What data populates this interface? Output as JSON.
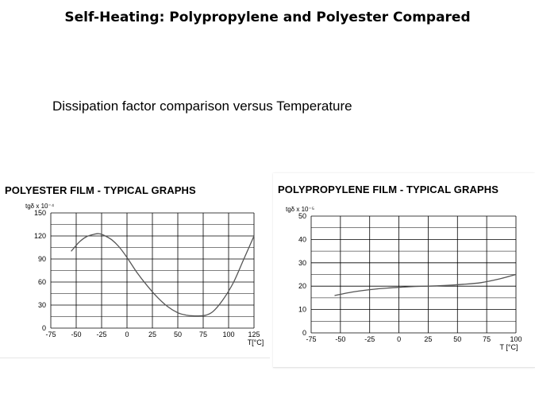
{
  "slide": {
    "title": "Self-Heating: Polypropylene and Polyester Compared",
    "subtitle": "Dissipation factor comparison versus Temperature"
  },
  "colors": {
    "grid": "#000000",
    "curve": "#555555",
    "background": "#ffffff"
  },
  "chart_data": [
    {
      "type": "line",
      "title": "POLYESTER FILM - TYPICAL GRAPHS",
      "ylabel": "tgδ x 10⁻⁴",
      "xlabel": "T[°C]",
      "xlim": [
        -75,
        125
      ],
      "ylim": [
        0,
        150
      ],
      "xticks": [
        "-75",
        "-50",
        "-25",
        "0",
        "25",
        "50",
        "75",
        "100",
        "125"
      ],
      "yticks": [
        "0",
        "30",
        "60",
        "90",
        "120",
        "150"
      ],
      "grid": true,
      "series": [
        {
          "x": [
            -55,
            -47,
            -40,
            -33,
            -28,
            -23,
            -15,
            -8,
            0,
            10,
            20,
            30,
            40,
            50,
            58,
            65,
            72,
            78,
            85,
            95,
            105,
            115,
            125
          ],
          "values": [
            100,
            112,
            119,
            122,
            123,
            121,
            115,
            106,
            92,
            72,
            55,
            40,
            28,
            20,
            17,
            16,
            16,
            17,
            22,
            38,
            60,
            90,
            120
          ]
        }
      ]
    },
    {
      "type": "line",
      "title": "POLYPROPYLENE FILM - TYPICAL GRAPHS",
      "ylabel": "tgδ x 10⁻⁵",
      "xlabel": "T [°C]",
      "xlim": [
        -75,
        100
      ],
      "ylim": [
        0,
        50
      ],
      "xticks": [
        "-75",
        "-50",
        "-25",
        "0",
        "25",
        "50",
        "75",
        "100"
      ],
      "yticks": [
        "0",
        "10",
        "20",
        "30",
        "40",
        "50"
      ],
      "grid": true,
      "series": [
        {
          "x": [
            -55,
            -40,
            -25,
            -10,
            0,
            10,
            25,
            40,
            55,
            70,
            85,
            100
          ],
          "values": [
            16,
            17.5,
            18.5,
            19.2,
            19.5,
            19.8,
            20,
            20.3,
            20.8,
            21.5,
            23,
            25
          ]
        }
      ]
    }
  ]
}
